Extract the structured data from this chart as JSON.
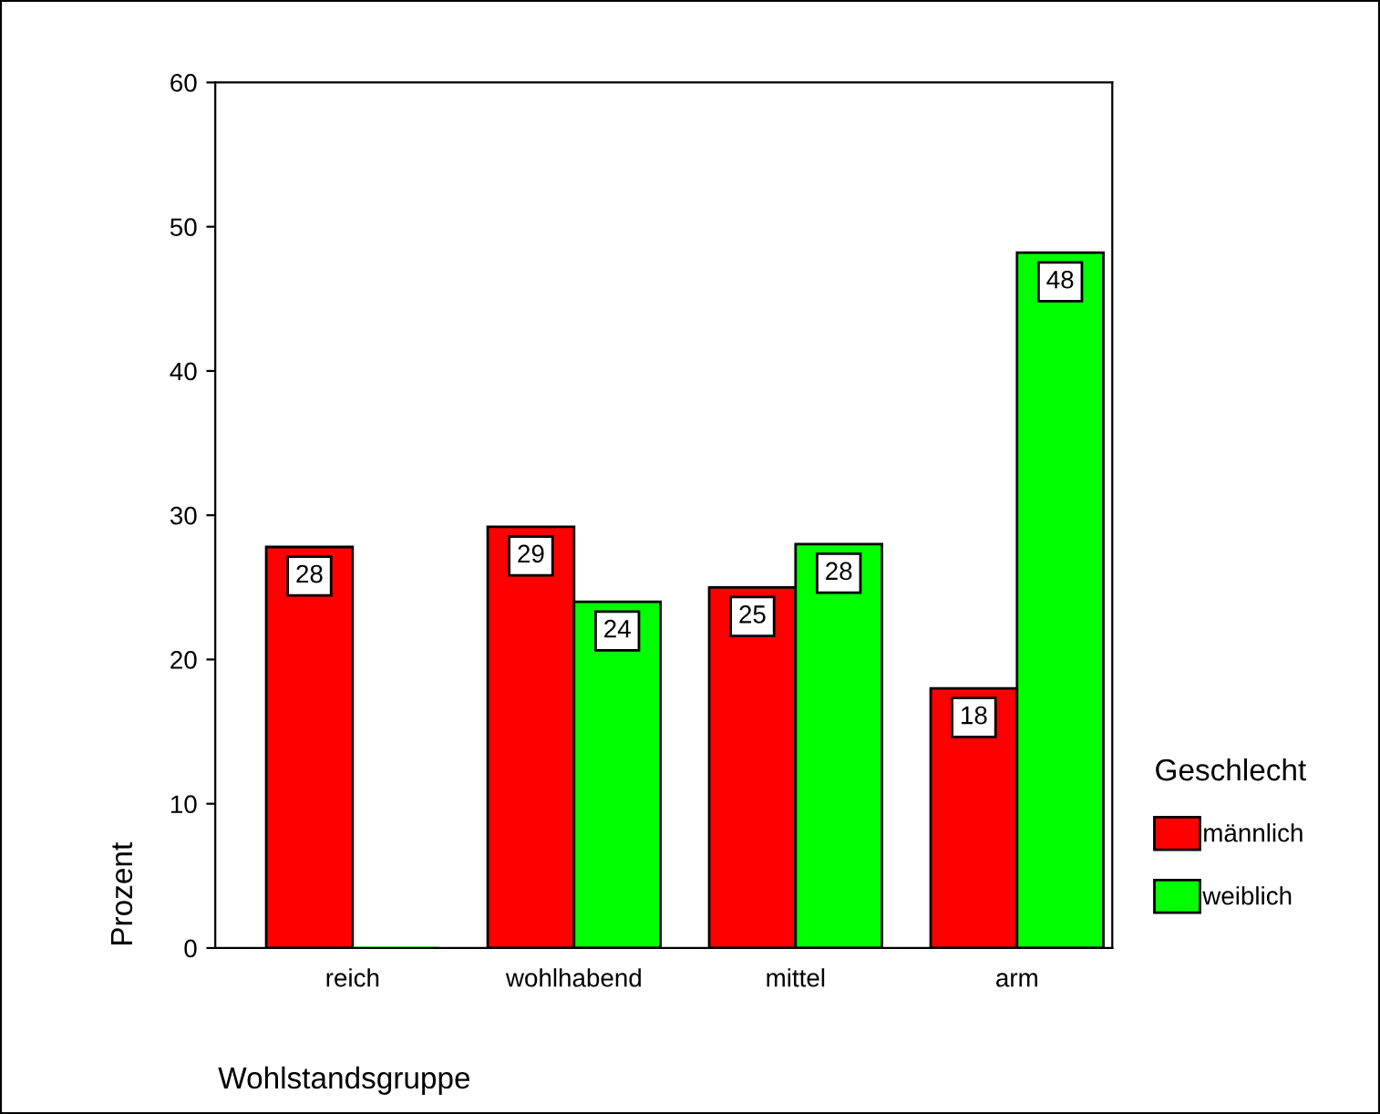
{
  "chart_data": {
    "type": "bar",
    "categories": [
      "reich",
      "wohlhabend",
      "mittel",
      "arm"
    ],
    "series": [
      {
        "name": "männlich",
        "color": "#ff0000",
        "values": [
          27.8,
          29.2,
          25.0,
          18.0
        ],
        "value_labels": [
          "28",
          "29",
          "25",
          "18"
        ]
      },
      {
        "name": "weiblich",
        "color": "#00ff00",
        "values": [
          0,
          24.0,
          28.0,
          48.2
        ],
        "value_labels": [
          null,
          "24",
          "28",
          "48"
        ]
      }
    ],
    "xlabel": "Wohlstandsgruppe",
    "ylabel": "Prozent",
    "legend_title": "Geschlecht",
    "ylim": [
      0,
      60
    ],
    "yticks": [
      0,
      10,
      20,
      30,
      40,
      50,
      60
    ],
    "grid": false,
    "legend": "right"
  }
}
